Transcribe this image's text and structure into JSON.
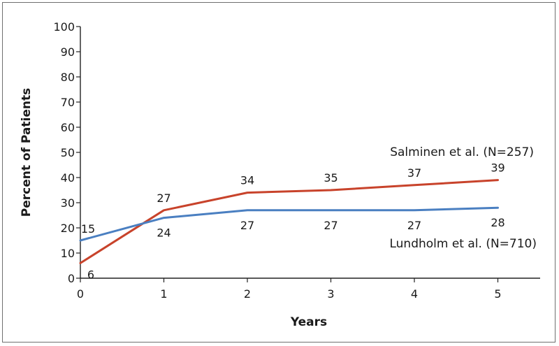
{
  "chart_data": {
    "type": "line",
    "xlabel": "Years",
    "ylabel": "Percent of Patients",
    "xlim": [
      0,
      5.5
    ],
    "ylim": [
      0,
      100
    ],
    "x_ticks": [
      "0",
      "1",
      "2",
      "3",
      "4",
      "5"
    ],
    "y_ticks": [
      "0",
      "10",
      "20",
      "30",
      "40",
      "50",
      "60",
      "70",
      "80",
      "90",
      "100"
    ],
    "x": [
      0,
      1,
      2,
      3,
      4,
      5
    ],
    "series": [
      {
        "name": "Salminen et al. (N=257)",
        "color": "#c8432b",
        "values": [
          6,
          27,
          34,
          35,
          37,
          39
        ],
        "labels": [
          "6",
          "27",
          "34",
          "35",
          "37",
          "39"
        ]
      },
      {
        "name": "Lundholm et al. (N=710)",
        "color": "#4a7fc1",
        "values": [
          15,
          24,
          27,
          27,
          27,
          28
        ],
        "labels": [
          "15",
          "24",
          "27",
          "27",
          "27",
          "28"
        ]
      }
    ],
    "grid": false,
    "legend": "inline labels near line ends"
  }
}
